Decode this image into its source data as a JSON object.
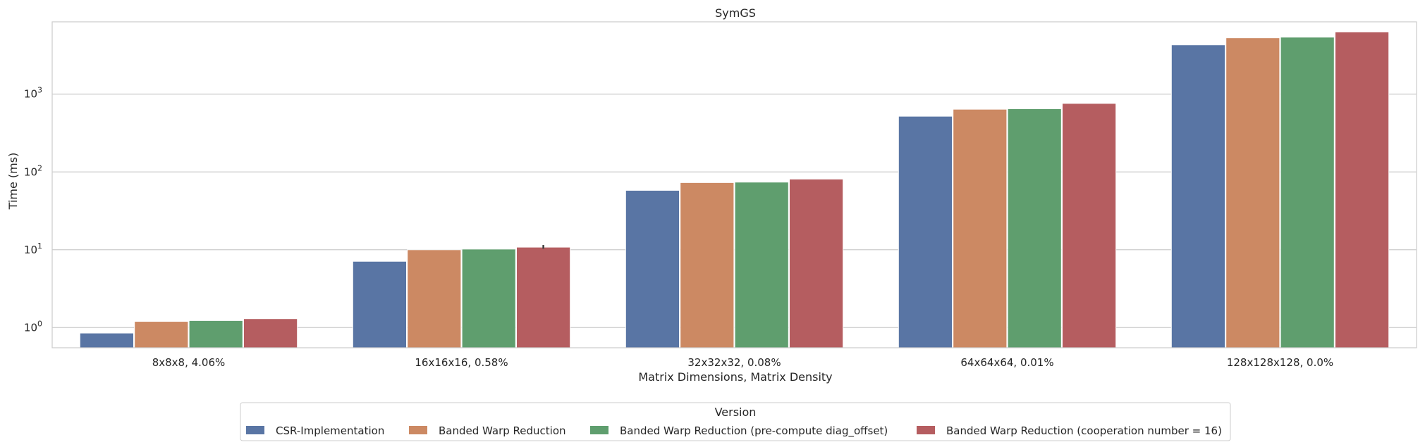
{
  "chart_data": {
    "type": "bar",
    "title": "SymGS",
    "xlabel": "Matrix Dimensions, Matrix Density",
    "ylabel": "Time (ms)",
    "yscale": "log",
    "ylim": [
      0.55,
      8500
    ],
    "yticks": [
      1,
      10,
      100,
      1000
    ],
    "ytick_labels": [
      {
        "base": "10",
        "exp": "0"
      },
      {
        "base": "10",
        "exp": "1"
      },
      {
        "base": "10",
        "exp": "2"
      },
      {
        "base": "10",
        "exp": "3"
      }
    ],
    "grid": "horizontal",
    "categories": [
      "8x8x8, 4.06%",
      "16x16x16, 0.58%",
      "32x32x32, 0.08%",
      "64x64x64, 0.01%",
      "128x128x128, 0.0%"
    ],
    "series": [
      {
        "name": "CSR-Implementation",
        "color": "#5975a4",
        "values": [
          0.85,
          7.1,
          58,
          520,
          4300
        ]
      },
      {
        "name": "Banded Warp Reduction",
        "color": "#cc8963",
        "values": [
          1.2,
          10.0,
          73,
          640,
          5300
        ]
      },
      {
        "name": "Banded Warp Reduction (pre-compute diag_offset)",
        "color": "#5f9e6e",
        "values": [
          1.23,
          10.2,
          74,
          650,
          5400
        ]
      },
      {
        "name": "Banded Warp Reduction (cooperation number = 16)",
        "color": "#b55d60",
        "values": [
          1.3,
          10.8,
          81,
          760,
          6300
        ]
      }
    ],
    "error_bars": [
      {
        "category": "16x16x16, 0.58%",
        "series": "Banded Warp Reduction (cooperation number = 16)",
        "low": 10.3,
        "high": 11.5
      }
    ],
    "legend": {
      "title": "Version",
      "placement": "bottom-center",
      "columns": 4
    }
  }
}
